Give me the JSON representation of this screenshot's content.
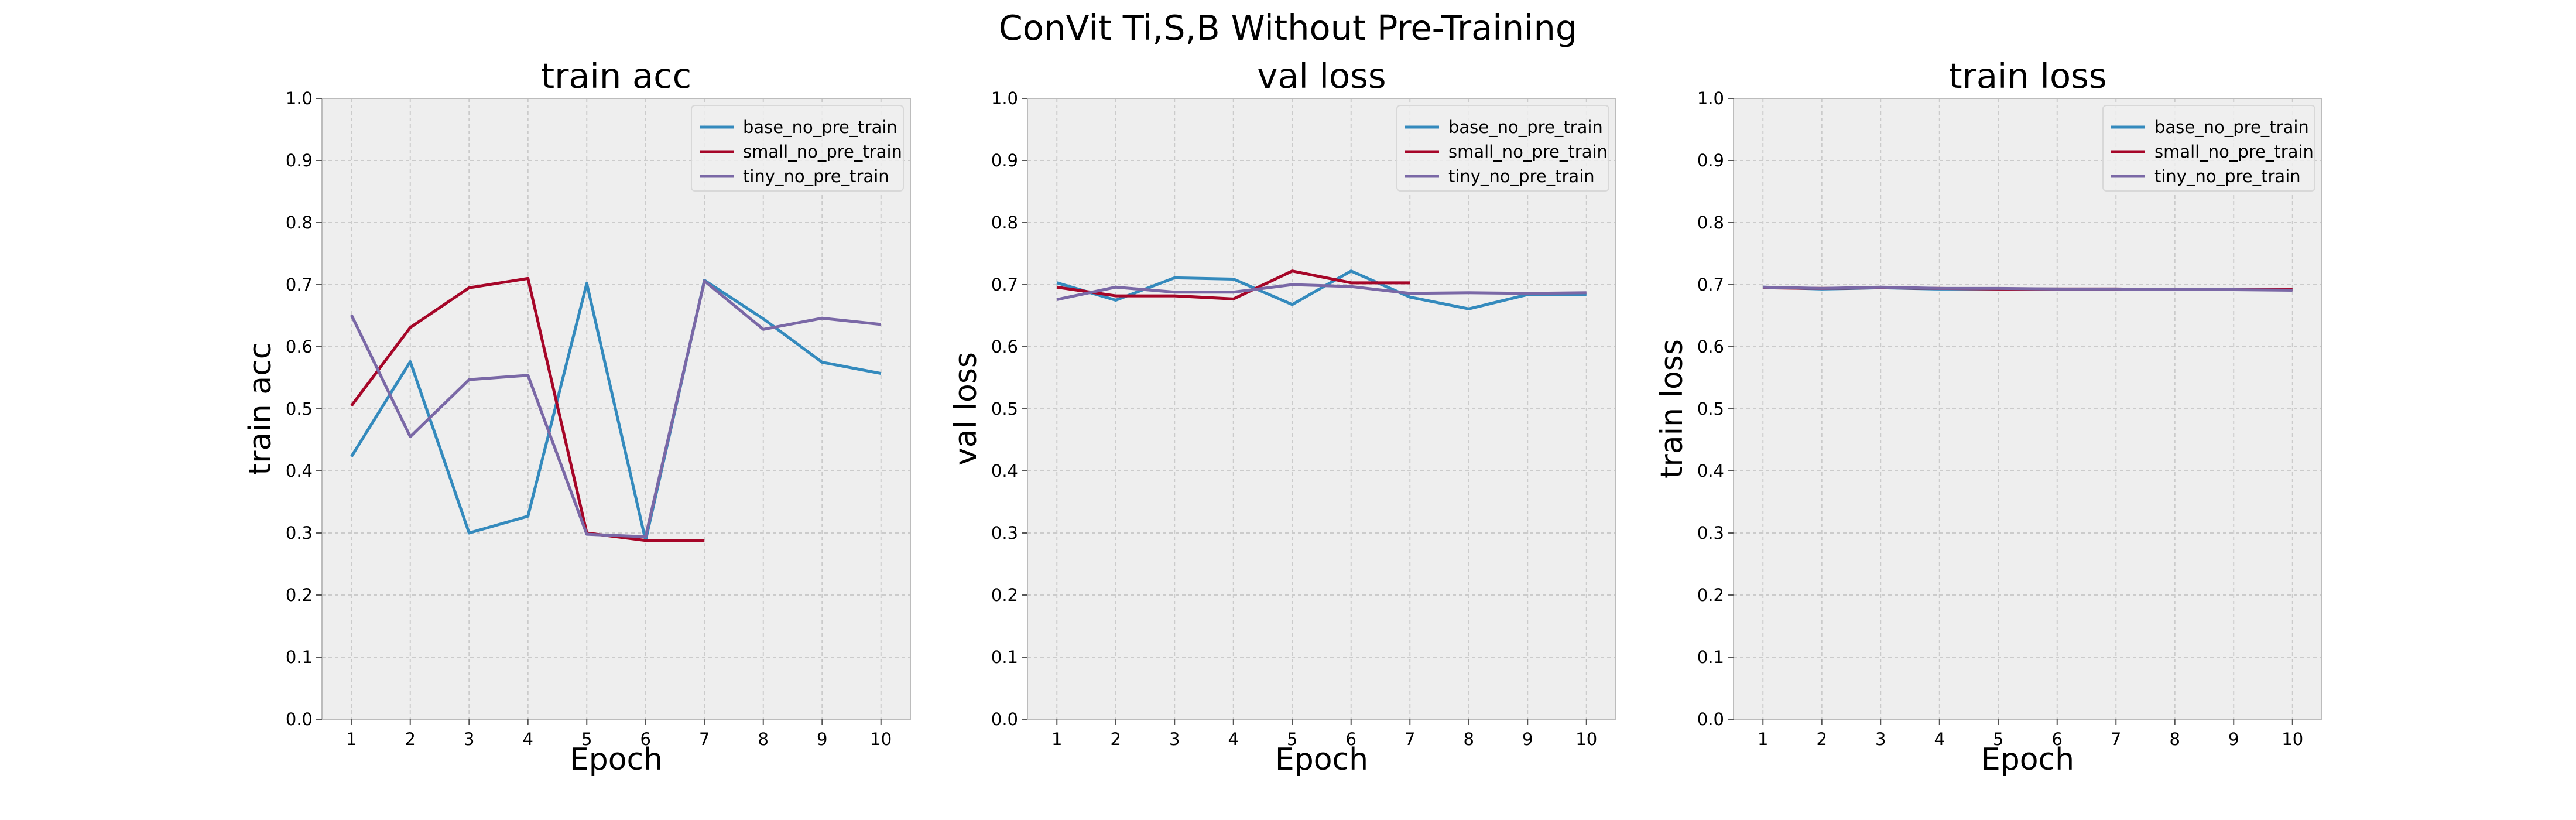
{
  "suptitle": "ConVit Ti,S,B Without Pre-Training",
  "colors": {
    "base": "#348ABD",
    "small": "#A60628",
    "tiny": "#7A68A6",
    "axes_bg": "#EEEEEE",
    "grid": "#CBCBCB",
    "spine": "#BCBCBC"
  },
  "chart_data": [
    {
      "type": "line",
      "title": "train acc",
      "xlabel": "Epoch",
      "ylabel": "train acc",
      "xlim": [
        0.5,
        10.5
      ],
      "ylim": [
        0.0,
        1.0
      ],
      "xticks": [
        "1",
        "2",
        "3",
        "4",
        "5",
        "6",
        "7",
        "8",
        "9",
        "10"
      ],
      "yticks": [
        "0.0",
        "0.1",
        "0.2",
        "0.3",
        "0.4",
        "0.5",
        "0.6",
        "0.7",
        "0.8",
        "0.9",
        "1.0"
      ],
      "grid": true,
      "legend": "upper right",
      "series": [
        {
          "name": "base_no_pre_train",
          "color": "#348ABD",
          "x": [
            1,
            2,
            3,
            4,
            5,
            6,
            7,
            8,
            9,
            10
          ],
          "y": [
            0.423,
            0.576,
            0.3,
            0.327,
            0.702,
            0.288,
            0.707,
            0.645,
            0.575,
            0.557
          ]
        },
        {
          "name": "small_no_pre_train",
          "color": "#A60628",
          "x": [
            1,
            2,
            3,
            4,
            5,
            6,
            7
          ],
          "y": [
            0.505,
            0.631,
            0.695,
            0.71,
            0.3,
            0.288,
            0.288
          ]
        },
        {
          "name": "tiny_no_pre_train",
          "color": "#7A68A6",
          "x": [
            1,
            2,
            3,
            4,
            5,
            6,
            7,
            8,
            9,
            10
          ],
          "y": [
            0.651,
            0.455,
            0.547,
            0.554,
            0.298,
            0.294,
            0.706,
            0.628,
            0.646,
            0.636
          ]
        }
      ]
    },
    {
      "type": "line",
      "title": "val loss",
      "xlabel": "Epoch",
      "ylabel": "val loss",
      "xlim": [
        0.5,
        10.5
      ],
      "ylim": [
        0.0,
        1.0
      ],
      "xticks": [
        "1",
        "2",
        "3",
        "4",
        "5",
        "6",
        "7",
        "8",
        "9",
        "10"
      ],
      "yticks": [
        "0.0",
        "0.1",
        "0.2",
        "0.3",
        "0.4",
        "0.5",
        "0.6",
        "0.7",
        "0.8",
        "0.9",
        "1.0"
      ],
      "grid": true,
      "legend": "upper right",
      "series": [
        {
          "name": "base_no_pre_train",
          "color": "#348ABD",
          "x": [
            1,
            2,
            3,
            4,
            5,
            6,
            7,
            8,
            9,
            10
          ],
          "y": [
            0.703,
            0.675,
            0.711,
            0.709,
            0.668,
            0.722,
            0.68,
            0.661,
            0.684,
            0.684
          ]
        },
        {
          "name": "small_no_pre_train",
          "color": "#A60628",
          "x": [
            1,
            2,
            3,
            4,
            5,
            6,
            7
          ],
          "y": [
            0.696,
            0.682,
            0.682,
            0.677,
            0.722,
            0.703,
            0.703
          ]
        },
        {
          "name": "tiny_no_pre_train",
          "color": "#7A68A6",
          "x": [
            1,
            2,
            3,
            4,
            5,
            6,
            7,
            8,
            9,
            10
          ],
          "y": [
            0.676,
            0.696,
            0.688,
            0.688,
            0.7,
            0.697,
            0.686,
            0.687,
            0.686,
            0.687
          ]
        }
      ]
    },
    {
      "type": "line",
      "title": "train loss",
      "xlabel": "Epoch",
      "ylabel": "train loss",
      "xlim": [
        0.5,
        10.5
      ],
      "ylim": [
        0.0,
        1.0
      ],
      "xticks": [
        "1",
        "2",
        "3",
        "4",
        "5",
        "6",
        "7",
        "8",
        "9",
        "10"
      ],
      "yticks": [
        "0.0",
        "0.1",
        "0.2",
        "0.3",
        "0.4",
        "0.5",
        "0.6",
        "0.7",
        "0.8",
        "0.9",
        "1.0"
      ],
      "grid": true,
      "legend": "upper right",
      "series": [
        {
          "name": "base_no_pre_train",
          "color": "#348ABD",
          "x": [
            1,
            2,
            3,
            4,
            5,
            6,
            7,
            8,
            9,
            10
          ],
          "y": [
            0.696,
            0.693,
            0.695,
            0.693,
            0.693,
            0.693,
            0.692,
            0.692,
            0.692,
            0.692
          ]
        },
        {
          "name": "small_no_pre_train",
          "color": "#A60628",
          "x": [
            1,
            2,
            3,
            4,
            5,
            6,
            7,
            8,
            9,
            10
          ],
          "y": [
            0.695,
            0.694,
            0.695,
            0.694,
            0.693,
            0.693,
            0.693,
            0.692,
            0.692,
            0.692
          ]
        },
        {
          "name": "tiny_no_pre_train",
          "color": "#7A68A6",
          "x": [
            1,
            2,
            3,
            4,
            5,
            6,
            7,
            8,
            9,
            10
          ],
          "y": [
            0.696,
            0.694,
            0.696,
            0.694,
            0.694,
            0.693,
            0.693,
            0.692,
            0.692,
            0.691
          ]
        }
      ]
    }
  ]
}
